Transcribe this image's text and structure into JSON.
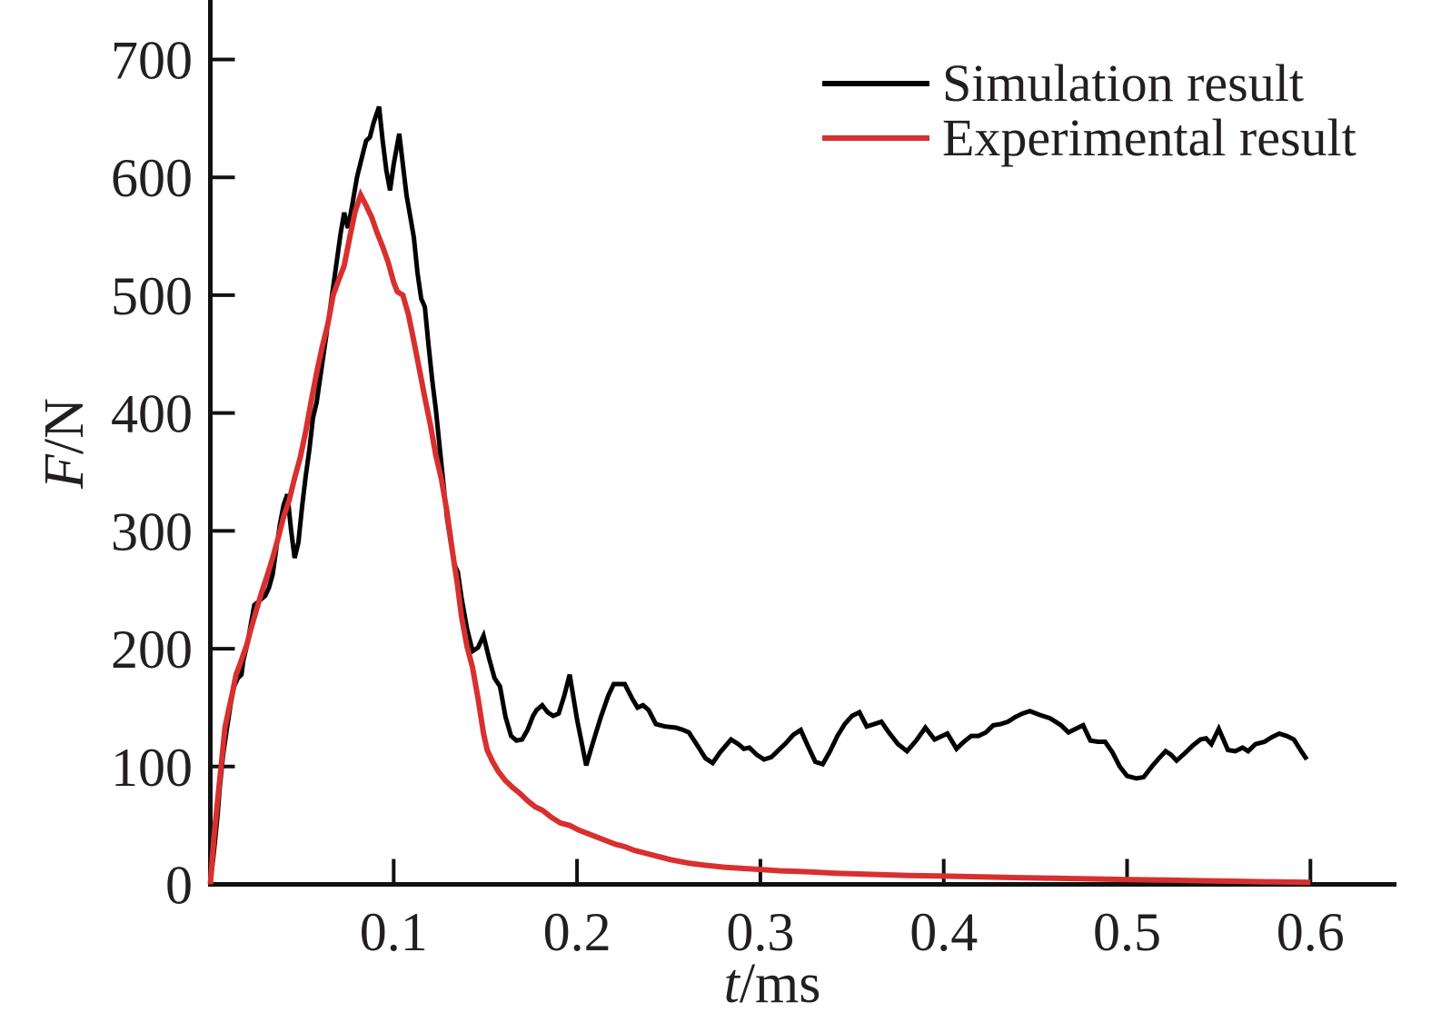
{
  "figure": {
    "background": "#ffffff",
    "text_color": "#231f20",
    "axis_color": "#111111"
  },
  "axes": {
    "y_label": {
      "italic": "F",
      "rest": "/N"
    },
    "x_label": {
      "italic": "t",
      "rest": "/ms"
    }
  },
  "legend": {
    "items": [
      {
        "label": "Simulation result",
        "color": "#000000"
      },
      {
        "label": "Experimental result",
        "color": "#d8302f"
      }
    ]
  },
  "chart_data": {
    "type": "line",
    "title": "",
    "xlabel": "t/ms",
    "ylabel": "F/N",
    "xlim": [
      0,
      0.645
    ],
    "ylim": [
      0,
      750
    ],
    "x_tick_values": [
      0.1,
      0.2,
      0.3,
      0.4,
      0.5,
      0.6
    ],
    "x_tick_labels": [
      "0.1",
      "0.2",
      "0.3",
      "0.4",
      "0.5",
      "0.6"
    ],
    "y_tick_values": [
      0,
      100,
      200,
      300,
      400,
      500,
      600,
      700
    ],
    "y_tick_labels": [
      "0",
      "100",
      "200",
      "300",
      "400",
      "500",
      "600",
      "700"
    ],
    "grid": false,
    "legend_position": "upper right",
    "series": [
      {
        "name": "Simulation result",
        "color": "#000000",
        "width": 5,
        "points": [
          [
            0,
            0
          ],
          [
            0.002,
            28
          ],
          [
            0.004,
            60
          ],
          [
            0.005,
            80
          ],
          [
            0.007,
            110
          ],
          [
            0.009,
            132
          ],
          [
            0.011,
            152
          ],
          [
            0.013,
            168
          ],
          [
            0.015,
            175
          ],
          [
            0.017,
            178
          ],
          [
            0.018,
            190
          ],
          [
            0.02,
            203
          ],
          [
            0.022,
            220
          ],
          [
            0.024,
            237
          ],
          [
            0.027,
            241
          ],
          [
            0.03,
            245
          ],
          [
            0.032,
            252
          ],
          [
            0.034,
            263
          ],
          [
            0.036,
            285
          ],
          [
            0.038,
            306
          ],
          [
            0.04,
            322
          ],
          [
            0.042,
            331
          ],
          [
            0.044,
            301
          ],
          [
            0.046,
            277
          ],
          [
            0.048,
            290
          ],
          [
            0.05,
            320
          ],
          [
            0.052,
            346
          ],
          [
            0.054,
            369
          ],
          [
            0.056,
            396
          ],
          [
            0.058,
            409
          ],
          [
            0.06,
            431
          ],
          [
            0.063,
            463
          ],
          [
            0.066,
            496
          ],
          [
            0.069,
            529
          ],
          [
            0.071,
            552
          ],
          [
            0.073,
            570
          ],
          [
            0.075,
            557
          ],
          [
            0.077,
            573
          ],
          [
            0.08,
            600
          ],
          [
            0.083,
            619
          ],
          [
            0.085,
            631
          ],
          [
            0.087,
            634
          ],
          [
            0.089,
            646
          ],
          [
            0.092,
            660
          ],
          [
            0.094,
            631
          ],
          [
            0.096,
            606
          ],
          [
            0.098,
            589
          ],
          [
            0.1,
            611
          ],
          [
            0.103,
            637
          ],
          [
            0.105,
            611
          ],
          [
            0.107,
            585
          ],
          [
            0.109,
            567
          ],
          [
            0.111,
            549
          ],
          [
            0.113,
            519
          ],
          [
            0.115,
            497
          ],
          [
            0.117,
            490
          ],
          [
            0.119,
            458
          ],
          [
            0.121,
            428
          ],
          [
            0.123,
            403
          ],
          [
            0.125,
            372
          ],
          [
            0.127,
            342
          ],
          [
            0.129,
            312
          ],
          [
            0.131,
            291
          ],
          [
            0.133,
            272
          ],
          [
            0.135,
            265
          ],
          [
            0.137,
            243
          ],
          [
            0.14,
            217
          ],
          [
            0.143,
            198
          ],
          [
            0.146,
            201
          ],
          [
            0.149,
            211
          ],
          [
            0.152,
            192
          ],
          [
            0.155,
            175
          ],
          [
            0.158,
            168
          ],
          [
            0.161,
            142
          ],
          [
            0.164,
            126
          ],
          [
            0.167,
            122
          ],
          [
            0.17,
            123
          ],
          [
            0.173,
            131
          ],
          [
            0.176,
            143
          ],
          [
            0.178,
            148
          ],
          [
            0.181,
            152
          ],
          [
            0.184,
            146
          ],
          [
            0.187,
            143
          ],
          [
            0.19,
            145
          ],
          [
            0.193,
            160
          ],
          [
            0.196,
            178
          ],
          [
            0.2,
            140
          ],
          [
            0.205,
            101
          ],
          [
            0.209,
            122
          ],
          [
            0.213,
            142
          ],
          [
            0.217,
            160
          ],
          [
            0.22,
            170
          ],
          [
            0.226,
            170
          ],
          [
            0.23,
            158
          ],
          [
            0.233,
            150
          ],
          [
            0.236,
            152
          ],
          [
            0.239,
            148
          ],
          [
            0.243,
            136
          ],
          [
            0.248,
            134
          ],
          [
            0.254,
            133
          ],
          [
            0.258,
            131
          ],
          [
            0.261,
            129
          ],
          [
            0.266,
            117
          ],
          [
            0.27,
            107
          ],
          [
            0.274,
            103
          ],
          [
            0.278,
            112
          ],
          [
            0.284,
            123
          ],
          [
            0.288,
            119
          ],
          [
            0.291,
            115
          ],
          [
            0.294,
            116
          ],
          [
            0.298,
            110
          ],
          [
            0.302,
            106
          ],
          [
            0.306,
            108
          ],
          [
            0.31,
            114
          ],
          [
            0.314,
            120
          ],
          [
            0.318,
            127
          ],
          [
            0.322,
            131
          ],
          [
            0.326,
            117
          ],
          [
            0.33,
            104
          ],
          [
            0.334,
            102
          ],
          [
            0.338,
            113
          ],
          [
            0.342,
            126
          ],
          [
            0.346,
            136
          ],
          [
            0.35,
            143
          ],
          [
            0.354,
            146
          ],
          [
            0.358,
            134
          ],
          [
            0.362,
            136
          ],
          [
            0.366,
            138
          ],
          [
            0.37,
            129
          ],
          [
            0.375,
            119
          ],
          [
            0.38,
            113
          ],
          [
            0.385,
            122
          ],
          [
            0.39,
            133
          ],
          [
            0.395,
            123
          ],
          [
            0.402,
            128
          ],
          [
            0.407,
            115
          ],
          [
            0.411,
            121
          ],
          [
            0.415,
            126
          ],
          [
            0.419,
            126
          ],
          [
            0.423,
            129
          ],
          [
            0.427,
            135
          ],
          [
            0.431,
            136
          ],
          [
            0.435,
            138
          ],
          [
            0.439,
            142
          ],
          [
            0.443,
            145
          ],
          [
            0.447,
            147
          ],
          [
            0.452,
            144
          ],
          [
            0.458,
            141
          ],
          [
            0.464,
            135
          ],
          [
            0.468,
            129
          ],
          [
            0.472,
            132
          ],
          [
            0.476,
            135
          ],
          [
            0.48,
            122
          ],
          [
            0.484,
            121
          ],
          [
            0.488,
            121
          ],
          [
            0.492,
            112
          ],
          [
            0.496,
            100
          ],
          [
            0.5,
            92
          ],
          [
            0.505,
            90
          ],
          [
            0.509,
            91
          ],
          [
            0.514,
            101
          ],
          [
            0.518,
            108
          ],
          [
            0.521,
            113
          ],
          [
            0.524,
            110
          ],
          [
            0.527,
            105
          ],
          [
            0.532,
            112
          ],
          [
            0.536,
            118
          ],
          [
            0.54,
            123
          ],
          [
            0.543,
            124
          ],
          [
            0.546,
            119
          ],
          [
            0.55,
            132
          ],
          [
            0.555,
            114
          ],
          [
            0.559,
            113
          ],
          [
            0.563,
            116
          ],
          [
            0.566,
            113
          ],
          [
            0.57,
            119
          ],
          [
            0.575,
            121
          ],
          [
            0.579,
            125
          ],
          [
            0.583,
            128
          ],
          [
            0.587,
            126
          ],
          [
            0.591,
            123
          ],
          [
            0.595,
            113
          ],
          [
            0.598,
            106
          ]
        ]
      },
      {
        "name": "Experimental result",
        "color": "#d8302f",
        "width": 6,
        "points": [
          [
            0,
            0
          ],
          [
            0.002,
            40
          ],
          [
            0.004,
            72
          ],
          [
            0.006,
            102
          ],
          [
            0.008,
            133
          ],
          [
            0.01,
            148
          ],
          [
            0.012,
            162
          ],
          [
            0.014,
            178
          ],
          [
            0.016,
            186
          ],
          [
            0.018,
            195
          ],
          [
            0.02,
            204
          ],
          [
            0.022,
            216
          ],
          [
            0.025,
            232
          ],
          [
            0.028,
            248
          ],
          [
            0.031,
            262
          ],
          [
            0.034,
            277
          ],
          [
            0.037,
            294
          ],
          [
            0.04,
            312
          ],
          [
            0.043,
            326
          ],
          [
            0.046,
            345
          ],
          [
            0.049,
            362
          ],
          [
            0.052,
            384
          ],
          [
            0.055,
            410
          ],
          [
            0.058,
            434
          ],
          [
            0.061,
            456
          ],
          [
            0.064,
            475
          ],
          [
            0.067,
            500
          ],
          [
            0.07,
            513
          ],
          [
            0.073,
            525
          ],
          [
            0.076,
            549
          ],
          [
            0.079,
            571
          ],
          [
            0.082,
            585
          ],
          [
            0.085,
            576
          ],
          [
            0.088,
            566
          ],
          [
            0.091,
            553
          ],
          [
            0.094,
            541
          ],
          [
            0.097,
            528
          ],
          [
            0.1,
            511
          ],
          [
            0.102,
            503
          ],
          [
            0.105,
            500
          ],
          [
            0.108,
            484
          ],
          [
            0.111,
            461
          ],
          [
            0.114,
            437
          ],
          [
            0.117,
            413
          ],
          [
            0.12,
            390
          ],
          [
            0.123,
            364
          ],
          [
            0.126,
            344
          ],
          [
            0.129,
            317
          ],
          [
            0.132,
            283
          ],
          [
            0.135,
            252
          ],
          [
            0.137,
            227
          ],
          [
            0.14,
            202
          ],
          [
            0.143,
            184
          ],
          [
            0.146,
            158
          ],
          [
            0.149,
            128
          ],
          [
            0.151,
            114
          ],
          [
            0.154,
            104
          ],
          [
            0.157,
            96
          ],
          [
            0.161,
            88
          ],
          [
            0.165,
            82
          ],
          [
            0.169,
            77
          ],
          [
            0.173,
            71
          ],
          [
            0.177,
            66
          ],
          [
            0.181,
            63
          ],
          [
            0.186,
            57
          ],
          [
            0.191,
            52
          ],
          [
            0.196,
            50
          ],
          [
            0.201,
            46
          ],
          [
            0.206,
            43
          ],
          [
            0.211,
            40
          ],
          [
            0.216,
            37
          ],
          [
            0.221,
            34
          ],
          [
            0.226,
            32
          ],
          [
            0.231,
            29
          ],
          [
            0.236,
            27
          ],
          [
            0.241,
            25
          ],
          [
            0.246,
            23
          ],
          [
            0.251,
            21
          ],
          [
            0.261,
            18
          ],
          [
            0.271,
            16
          ],
          [
            0.281,
            14.5
          ],
          [
            0.291,
            13.5
          ],
          [
            0.301,
            12.5
          ],
          [
            0.311,
            11.5
          ],
          [
            0.321,
            11
          ],
          [
            0.341,
            9.5
          ],
          [
            0.361,
            8.5
          ],
          [
            0.381,
            7.5
          ],
          [
            0.401,
            7
          ],
          [
            0.421,
            6.3
          ],
          [
            0.441,
            5.7
          ],
          [
            0.461,
            5.2
          ],
          [
            0.481,
            4.6
          ],
          [
            0.501,
            4.1
          ],
          [
            0.521,
            3.6
          ],
          [
            0.541,
            3.1
          ],
          [
            0.561,
            2.6
          ],
          [
            0.581,
            2.1
          ],
          [
            0.6,
            1.8
          ]
        ]
      }
    ]
  }
}
